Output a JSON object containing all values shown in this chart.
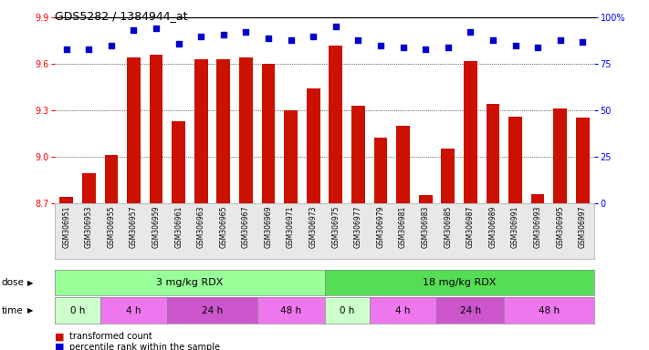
{
  "title": "GDS5282 / 1384944_at",
  "samples": [
    "GSM306951",
    "GSM306953",
    "GSM306955",
    "GSM306957",
    "GSM306959",
    "GSM306961",
    "GSM306963",
    "GSM306965",
    "GSM306967",
    "GSM306969",
    "GSM306971",
    "GSM306973",
    "GSM306975",
    "GSM306977",
    "GSM306979",
    "GSM306981",
    "GSM306983",
    "GSM306985",
    "GSM306987",
    "GSM306989",
    "GSM306991",
    "GSM306993",
    "GSM306995",
    "GSM306997"
  ],
  "bar_values": [
    8.74,
    8.89,
    9.01,
    9.64,
    9.66,
    9.23,
    9.63,
    9.63,
    9.64,
    9.6,
    9.3,
    9.44,
    9.72,
    9.33,
    9.12,
    9.2,
    8.75,
    9.05,
    9.62,
    9.34,
    9.26,
    8.76,
    9.31,
    9.25
  ],
  "percentile_values": [
    83,
    83,
    85,
    93,
    94,
    86,
    90,
    91,
    92,
    89,
    88,
    90,
    95,
    88,
    85,
    84,
    83,
    84,
    92,
    88,
    85,
    84,
    88,
    87
  ],
  "ylim_left": [
    8.7,
    9.9
  ],
  "ylim_right": [
    0,
    100
  ],
  "yticks_left": [
    8.7,
    9.0,
    9.3,
    9.6,
    9.9
  ],
  "yticks_right": [
    0,
    25,
    50,
    75,
    100
  ],
  "bar_color": "#cc1100",
  "dot_color": "#0000cc",
  "dose_color_3": "#99ff99",
  "dose_color_18": "#55dd55",
  "time_color_light": "#ccffcc",
  "time_color_pink": "#ee88ee",
  "time_color_magenta": "#cc55cc",
  "legend_red_label": "transformed count",
  "legend_blue_label": "percentile rank within the sample",
  "time_groups": [
    {
      "label": "0 h",
      "start": 0,
      "end": 1,
      "color": "#ccffcc"
    },
    {
      "label": "4 h",
      "start": 2,
      "end": 4,
      "color": "#ee77ee"
    },
    {
      "label": "24 h",
      "start": 5,
      "end": 8,
      "color": "#cc55cc"
    },
    {
      "label": "48 h",
      "start": 9,
      "end": 11,
      "color": "#ee77ee"
    },
    {
      "label": "0 h",
      "start": 12,
      "end": 13,
      "color": "#ccffcc"
    },
    {
      "label": "4 h",
      "start": 14,
      "end": 16,
      "color": "#ee77ee"
    },
    {
      "label": "24 h",
      "start": 17,
      "end": 19,
      "color": "#cc55cc"
    },
    {
      "label": "48 h",
      "start": 20,
      "end": 23,
      "color": "#ee77ee"
    }
  ]
}
